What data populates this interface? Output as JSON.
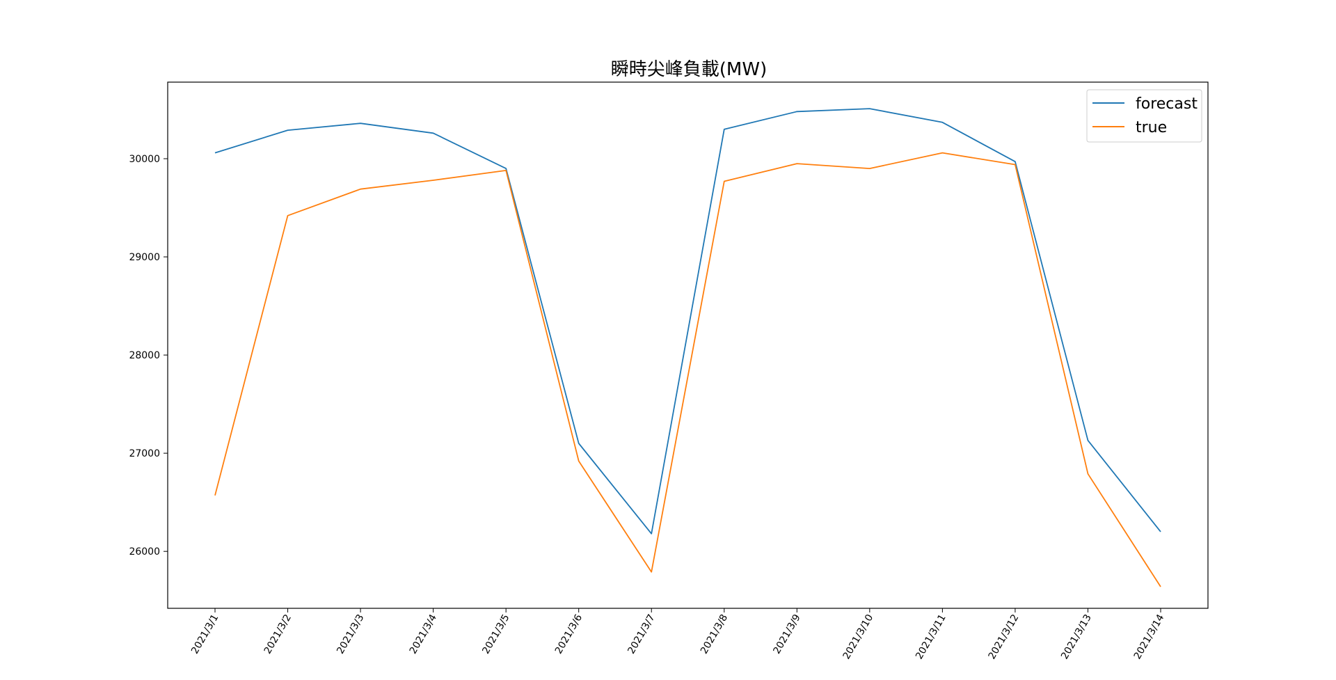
{
  "chart_data": {
    "type": "line",
    "title": "瞬時尖峰負載(MW)",
    "xlabel": "",
    "ylabel": "",
    "categories": [
      "2021/3/1",
      "2021/3/2",
      "2021/3/3",
      "2021/3/4",
      "2021/3/5",
      "2021/3/6",
      "2021/3/7",
      "2021/3/8",
      "2021/3/9",
      "2021/3/10",
      "2021/3/11",
      "2021/3/12",
      "2021/3/13",
      "2021/3/14"
    ],
    "yticks": [
      26000,
      27000,
      28000,
      29000,
      30000
    ],
    "ylim": [
      25420,
      30780
    ],
    "grid": false,
    "legend_position": "top-right",
    "series": [
      {
        "name": "forecast",
        "color": "#1f77b4",
        "values": [
          30060,
          30290,
          30360,
          30260,
          29900,
          27100,
          26180,
          30300,
          30480,
          30510,
          30370,
          29970,
          27130,
          26200
        ]
      },
      {
        "name": "true",
        "color": "#ff7f0e",
        "values": [
          26570,
          29420,
          29690,
          29780,
          29880,
          26920,
          25790,
          29770,
          29950,
          29900,
          30060,
          29940,
          26790,
          25640
        ]
      }
    ]
  }
}
